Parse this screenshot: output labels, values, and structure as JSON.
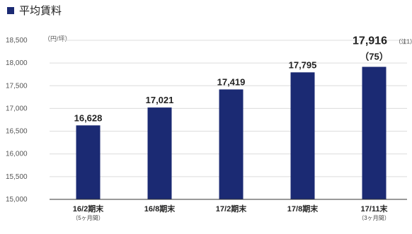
{
  "chart_data": {
    "type": "bar",
    "title": "平均賃料",
    "unit_label": "（円/坪）",
    "categories": [
      {
        "label": "16/2期末",
        "sub": "（5ヶ月間）"
      },
      {
        "label": "16/8期末",
        "sub": ""
      },
      {
        "label": "17/2期末",
        "sub": ""
      },
      {
        "label": "17/8期末",
        "sub": ""
      },
      {
        "label": "17/11末",
        "sub": "（3ヶ月間）"
      }
    ],
    "values": [
      16628,
      17021,
      17419,
      17795,
      17916
    ],
    "value_labels": [
      "16,628",
      "17,021",
      "17,419",
      "17,795",
      "17,916"
    ],
    "last_note": "（注1）",
    "last_extra": "（75）",
    "ylim": [
      15000,
      18500
    ],
    "yticks": [
      "15,000",
      "15,500",
      "16,000",
      "16,500",
      "17,000",
      "17,500",
      "18,000",
      "18,500"
    ],
    "ytick_values": [
      15000,
      15500,
      16000,
      16500,
      17000,
      17500,
      18000,
      18500
    ],
    "grid": true,
    "colors": {
      "bar": "#1b2a73"
    }
  }
}
